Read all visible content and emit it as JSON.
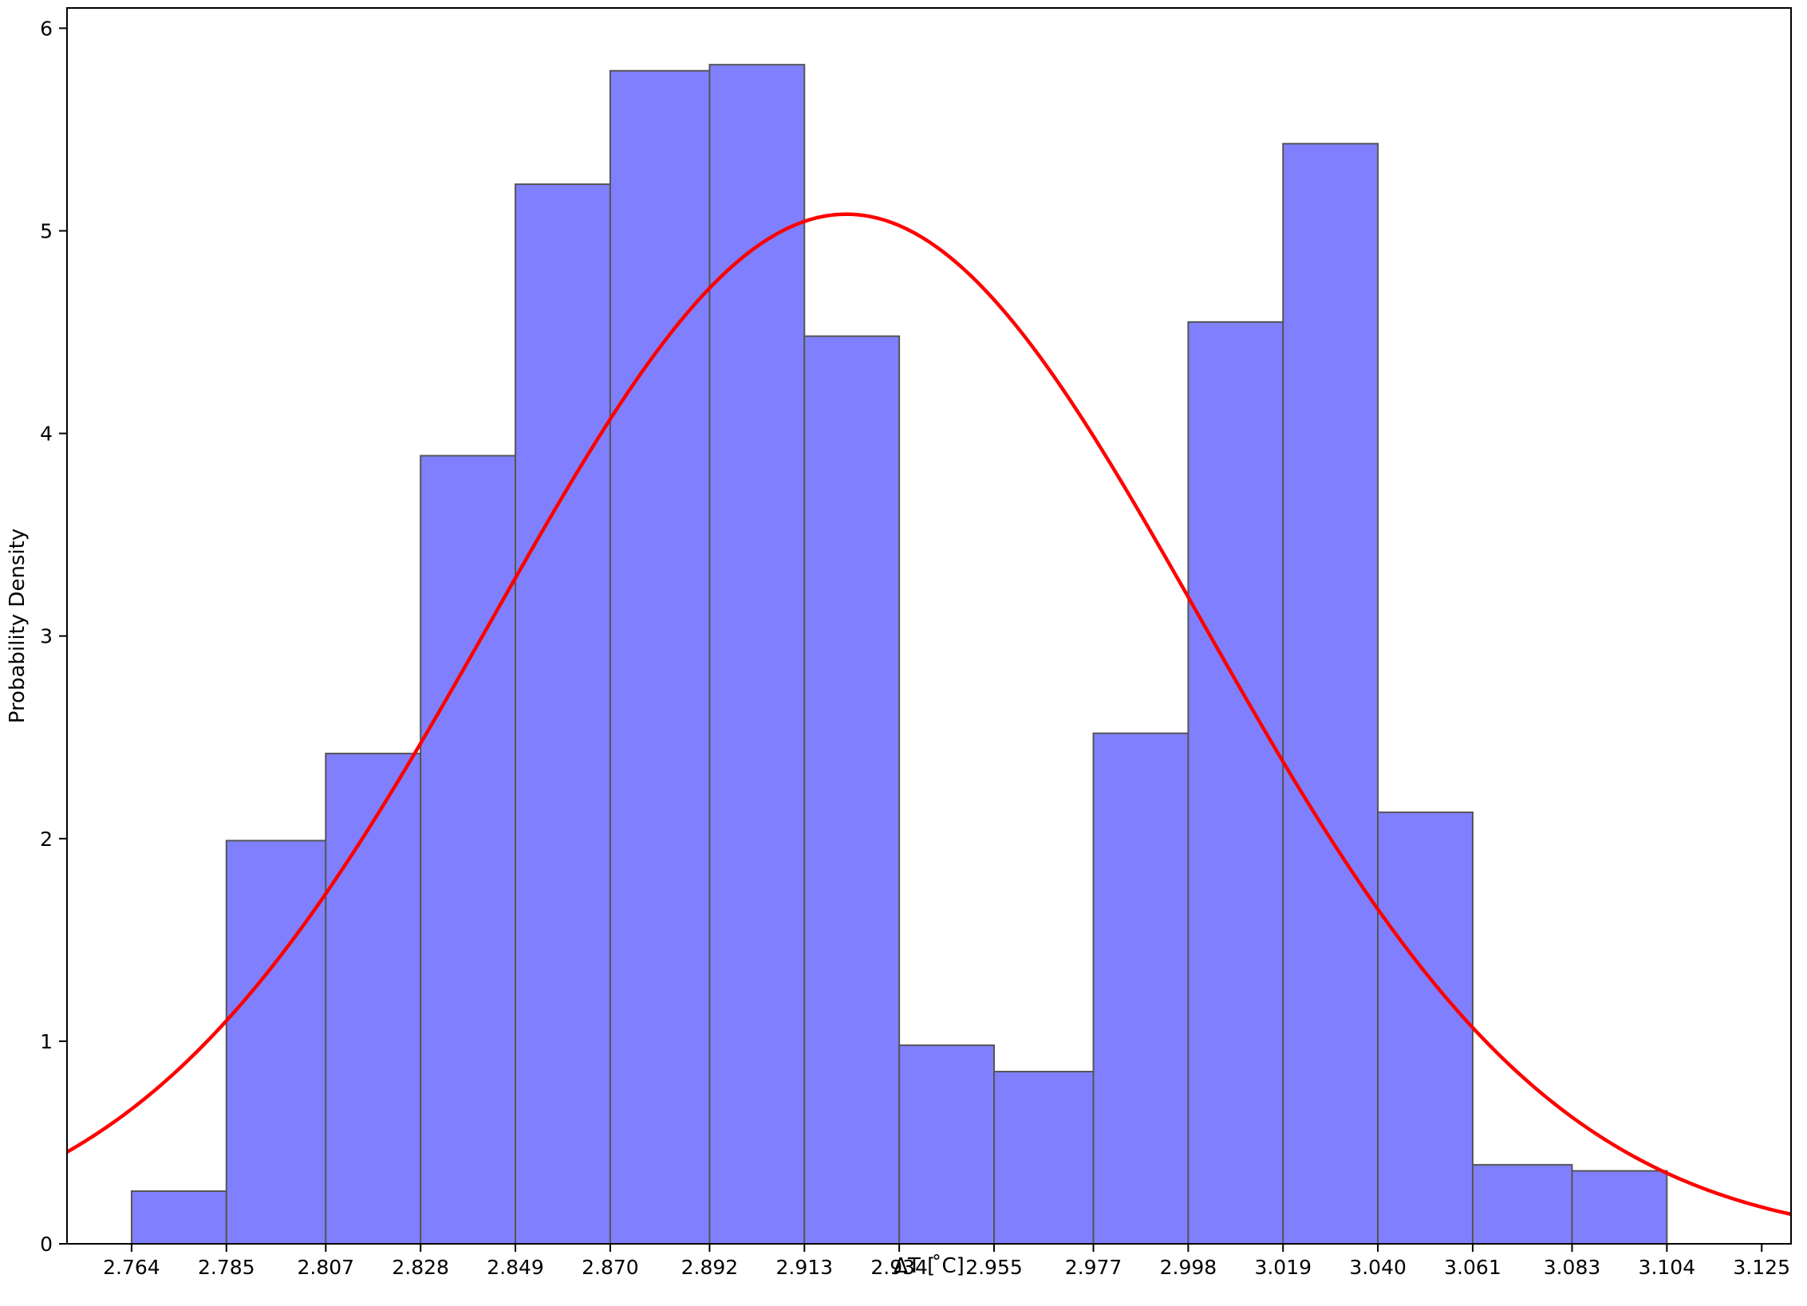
{
  "chart_data": {
    "type": "bar",
    "subtype": "histogram-with-fit",
    "title": "",
    "xlabel": "ΔT [ ̊C]",
    "ylabel": "Probability Density",
    "xlim": [
      2.7497,
      3.1315
    ],
    "ylim": [
      0,
      6.1
    ],
    "grid": false,
    "legend": "none",
    "bin_edges": [
      2.764,
      2.785,
      2.807,
      2.828,
      2.849,
      2.87,
      2.892,
      2.913,
      2.934,
      2.955,
      2.977,
      2.998,
      3.019,
      3.04,
      3.061,
      3.083,
      3.104
    ],
    "x_tick_labels": [
      "2.764",
      "2.785",
      "2.807",
      "2.828",
      "2.849",
      "2.870",
      "2.892",
      "2.913",
      "2.934",
      "2.955",
      "2.977",
      "2.998",
      "3.019",
      "3.040",
      "3.061",
      "3.083",
      "3.104",
      "3.125"
    ],
    "x_tick_values": [
      2.764,
      2.785,
      2.807,
      2.828,
      2.849,
      2.87,
      2.892,
      2.913,
      2.934,
      2.955,
      2.977,
      2.998,
      3.019,
      3.04,
      3.061,
      3.083,
      3.104,
      3.125
    ],
    "y_tick_labels": [
      "0",
      "1",
      "2",
      "3",
      "4",
      "5",
      "6"
    ],
    "y_tick_values": [
      0,
      1,
      2,
      3,
      4,
      5,
      6
    ],
    "series": [
      {
        "type": "histogram",
        "values": [
          0.26,
          1.99,
          2.42,
          3.89,
          5.23,
          5.79,
          5.82,
          4.48,
          0.98,
          0.85,
          2.52,
          4.55,
          5.43,
          2.13,
          0.39,
          0.36
        ],
        "color": "#8080ff",
        "edgecolor": "#555555"
      },
      {
        "type": "line",
        "fit": "normal",
        "mean": 2.9223,
        "std": 0.0785,
        "color": "#ff0000"
      }
    ]
  }
}
